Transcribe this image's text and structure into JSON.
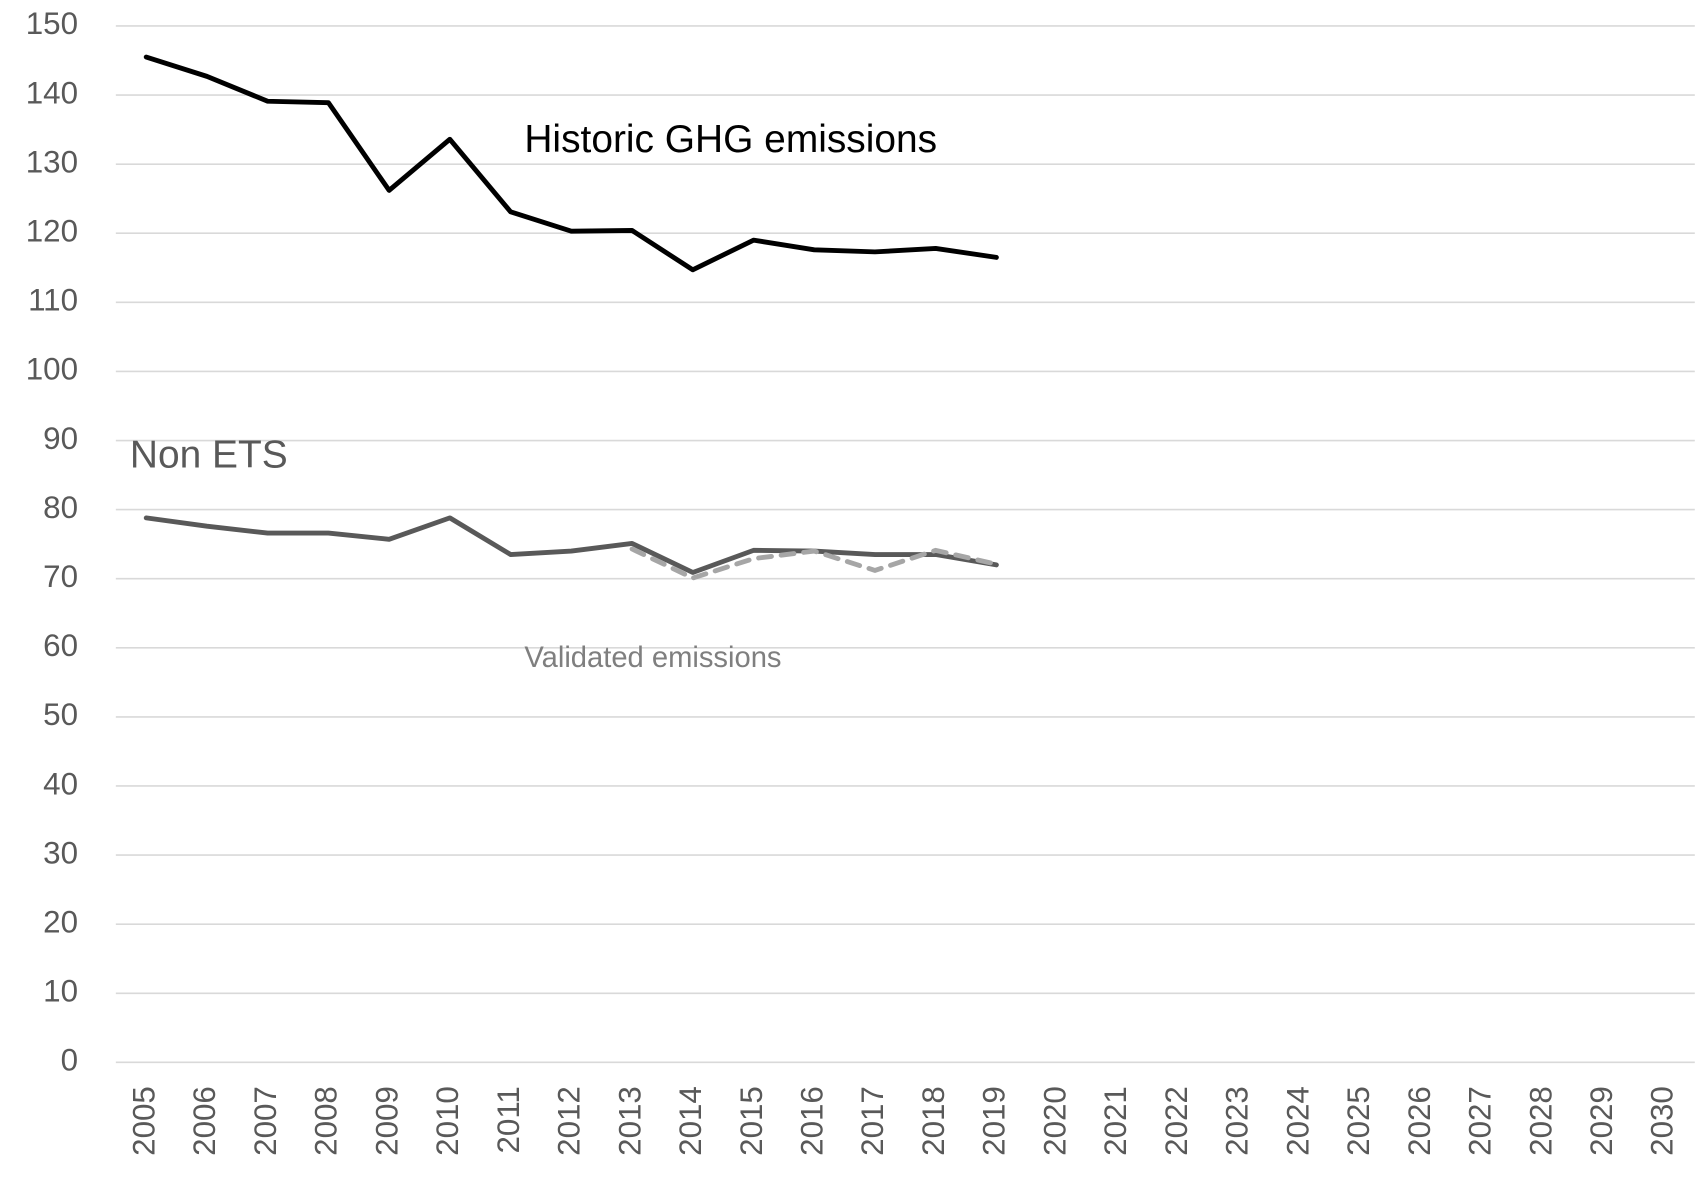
{
  "chart_data": {
    "type": "line",
    "categories": [
      "2005",
      "2006",
      "2007",
      "2008",
      "2009",
      "2010",
      "2011",
      "2012",
      "2013",
      "2014",
      "2015",
      "2016",
      "2017",
      "2018",
      "2019",
      "2020",
      "2021",
      "2022",
      "2023",
      "2024",
      "2025",
      "2026",
      "2027",
      "2028",
      "2029",
      "2030"
    ],
    "series": [
      {
        "name": "Historic GHG emissions",
        "color": "#000000",
        "dashed": false,
        "values": [
          145.5,
          142.7,
          139.1,
          138.9,
          126.2,
          133.6,
          123.1,
          120.3,
          120.4,
          114.7,
          119.0,
          117.6,
          117.3,
          117.8,
          116.5,
          null,
          null,
          null,
          null,
          null,
          null,
          null,
          null,
          null,
          null,
          null
        ]
      },
      {
        "name": "Non ETS",
        "color": "#595959",
        "dashed": false,
        "values": [
          78.8,
          77.6,
          76.6,
          76.6,
          75.7,
          78.8,
          73.5,
          74.0,
          75.1,
          70.9,
          74.1,
          74.0,
          73.5,
          73.5,
          72.0,
          null,
          null,
          null,
          null,
          null,
          null,
          null,
          null,
          null,
          null,
          null
        ]
      },
      {
        "name": "Validated emissions",
        "color": "#a6a6a6",
        "dashed": true,
        "values": [
          null,
          null,
          null,
          null,
          null,
          null,
          null,
          null,
          74.3,
          70.1,
          72.9,
          74.0,
          71.2,
          74.1,
          72.1,
          null,
          null,
          null,
          null,
          null,
          null,
          null,
          null,
          null,
          null,
          null
        ]
      }
    ],
    "ylim": [
      0,
      150
    ],
    "yticks": [
      0,
      10,
      20,
      30,
      40,
      50,
      60,
      70,
      80,
      90,
      100,
      110,
      120,
      130,
      140,
      150
    ],
    "grid": true
  }
}
